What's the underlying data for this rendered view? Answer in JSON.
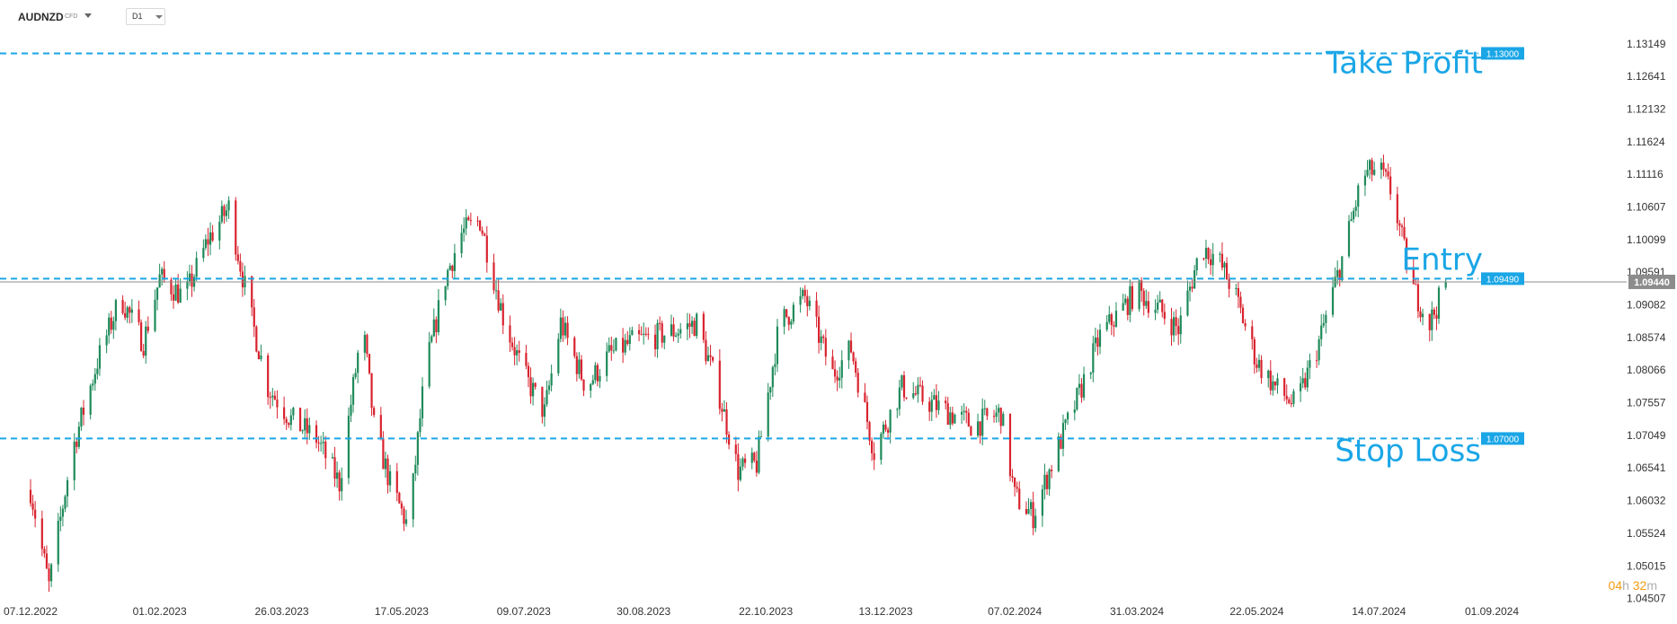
{
  "header": {
    "symbol": "AUDNZD",
    "symbol_type": "CFD",
    "timeframe": "D1"
  },
  "timer": {
    "hours": "04",
    "hours_unit": "h",
    "minutes": "32",
    "minutes_unit": "m"
  },
  "colors": {
    "bull": "#1e8a5a",
    "bear": "#d9232e",
    "level": "#1aa6e6",
    "current": "#8c8c8c"
  },
  "chart_data": {
    "type": "candlestick",
    "ylim": [
      1.0446,
      1.133
    ],
    "y_ticks": [
      "1.13149",
      "1.12641",
      "1.12132",
      "1.11624",
      "1.11116",
      "1.10607",
      "1.10099",
      "1.09591",
      "1.09082",
      "1.08574",
      "1.08066",
      "1.07557",
      "1.07049",
      "1.06541",
      "1.06032",
      "1.05524",
      "1.05015",
      "1.04507"
    ],
    "x_ticks": [
      "07.12.2022",
      "01.02.2023",
      "26.03.2023",
      "17.05.2023",
      "09.07.2023",
      "30.08.2023",
      "22.10.2023",
      "13.12.2023",
      "07.02.2024",
      "31.03.2024",
      "22.05.2024",
      "14.07.2024",
      "01.09.2024"
    ],
    "levels": [
      {
        "name": "Take Profit",
        "value": 1.13,
        "label": "1.13000"
      },
      {
        "name": "Entry",
        "value": 1.0949,
        "label": "1.09490"
      },
      {
        "name": "Stop Loss",
        "value": 1.07,
        "label": "1.07000"
      }
    ],
    "current_price": {
      "value": 1.0944,
      "label": "1.09440"
    },
    "annotations": [
      "Take Profit",
      "Entry",
      "Stop Loss"
    ],
    "close_path": [
      [
        "07.12.2022",
        1.062
      ],
      [
        "15.12.2022",
        1.047
      ],
      [
        "25.12.2022",
        1.068
      ],
      [
        "05.01.2023",
        1.082
      ],
      [
        "15.01.2023",
        1.092
      ],
      [
        "25.01.2023",
        1.085
      ],
      [
        "01.02.2023",
        1.095
      ],
      [
        "12.02.2023",
        1.092
      ],
      [
        "22.02.2023",
        1.101
      ],
      [
        "03.03.2023",
        1.106
      ],
      [
        "12.03.2023",
        1.09
      ],
      [
        "20.03.2023",
        1.078
      ],
      [
        "30.03.2023",
        1.073
      ],
      [
        "10.04.2023",
        1.07
      ],
      [
        "20.04.2023",
        1.063
      ],
      [
        "30.04.2023",
        1.088
      ],
      [
        "05.05.2023",
        1.072
      ],
      [
        "12.05.2023",
        1.063
      ],
      [
        "20.05.2023",
        1.056
      ],
      [
        "27.05.2023",
        1.08
      ],
      [
        "05.06.2023",
        1.095
      ],
      [
        "12.06.2023",
        1.102
      ],
      [
        "20.06.2023",
        1.104
      ],
      [
        "30.06.2023",
        1.089
      ],
      [
        "09.07.2023",
        1.08
      ],
      [
        "18.07.2023",
        1.074
      ],
      [
        "25.07.2023",
        1.088
      ],
      [
        "05.08.2023",
        1.078
      ],
      [
        "15.08.2023",
        1.083
      ],
      [
        "25.08.2023",
        1.085
      ],
      [
        "05.09.2023",
        1.086
      ],
      [
        "15.09.2023",
        1.087
      ],
      [
        "22.09.2023",
        1.088
      ],
      [
        "01.10.2023",
        1.078
      ],
      [
        "10.10.2023",
        1.065
      ],
      [
        "18.10.2023",
        1.066
      ],
      [
        "28.10.2023",
        1.088
      ],
      [
        "08.11.2023",
        1.092
      ],
      [
        "20.11.2023",
        1.08
      ],
      [
        "28.11.2023",
        1.084
      ],
      [
        "08.12.2023",
        1.068
      ],
      [
        "20.12.2023",
        1.078
      ],
      [
        "30.12.2023",
        1.076
      ],
      [
        "10.01.2024",
        1.074
      ],
      [
        "20.01.2024",
        1.072
      ],
      [
        "01.02.2024",
        1.074
      ],
      [
        "07.02.2024",
        1.061
      ],
      [
        "15.02.2024",
        1.058
      ],
      [
        "25.02.2024",
        1.068
      ],
      [
        "05.03.2024",
        1.076
      ],
      [
        "15.03.2024",
        1.086
      ],
      [
        "31.03.2024",
        1.093
      ],
      [
        "10.04.2024",
        1.09
      ],
      [
        "18.04.2024",
        1.087
      ],
      [
        "28.04.2024",
        1.1
      ],
      [
        "05.05.2024",
        1.098
      ],
      [
        "12.05.2024",
        1.093
      ],
      [
        "22.05.2024",
        1.082
      ],
      [
        "30.05.2024",
        1.078
      ],
      [
        "08.06.2024",
        1.075
      ],
      [
        "18.06.2024",
        1.085
      ],
      [
        "28.06.2024",
        1.098
      ],
      [
        "07.07.2024",
        1.111
      ],
      [
        "14.07.2024",
        1.112
      ],
      [
        "20.07.2024",
        1.108
      ],
      [
        "28.07.2024",
        1.094
      ],
      [
        "05.08.2024",
        1.088
      ],
      [
        "12.08.2024",
        1.094
      ]
    ]
  }
}
